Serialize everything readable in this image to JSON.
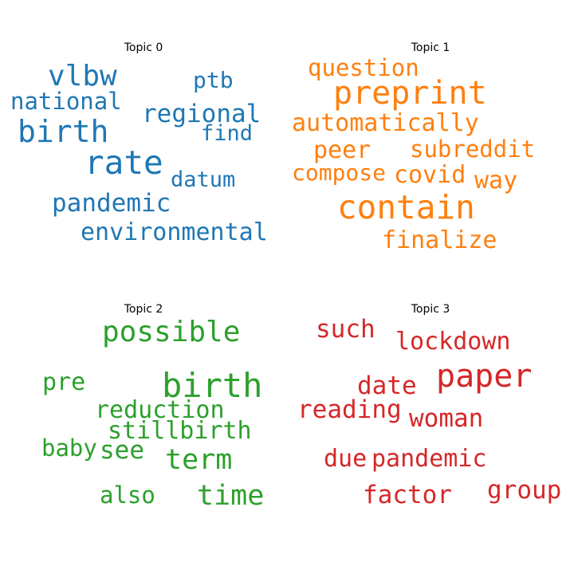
{
  "colors": {
    "topic_0": "#1f77b4",
    "topic_1": "#ff7f0e",
    "topic_2": "#2ca02c",
    "topic_3": "#d62728"
  },
  "topics": [
    {
      "title": "Topic 0",
      "words": [
        "vlbw",
        "ptb",
        "national",
        "regional",
        "birth",
        "find",
        "rate",
        "datum",
        "pandemic",
        "environmental"
      ]
    },
    {
      "title": "Topic 1",
      "words": [
        "question",
        "preprint",
        "automatically",
        "peer",
        "subreddit",
        "compose",
        "covid",
        "way",
        "contain",
        "finalize"
      ]
    },
    {
      "title": "Topic 2",
      "words": [
        "possible",
        "pre",
        "birth",
        "reduction",
        "stillbirth",
        "baby",
        "see",
        "term",
        "also",
        "time"
      ]
    },
    {
      "title": "Topic 3",
      "words": [
        "such",
        "lockdown",
        "paper",
        "date",
        "reading",
        "woman",
        "due",
        "pandemic",
        "factor",
        "group"
      ]
    }
  ]
}
